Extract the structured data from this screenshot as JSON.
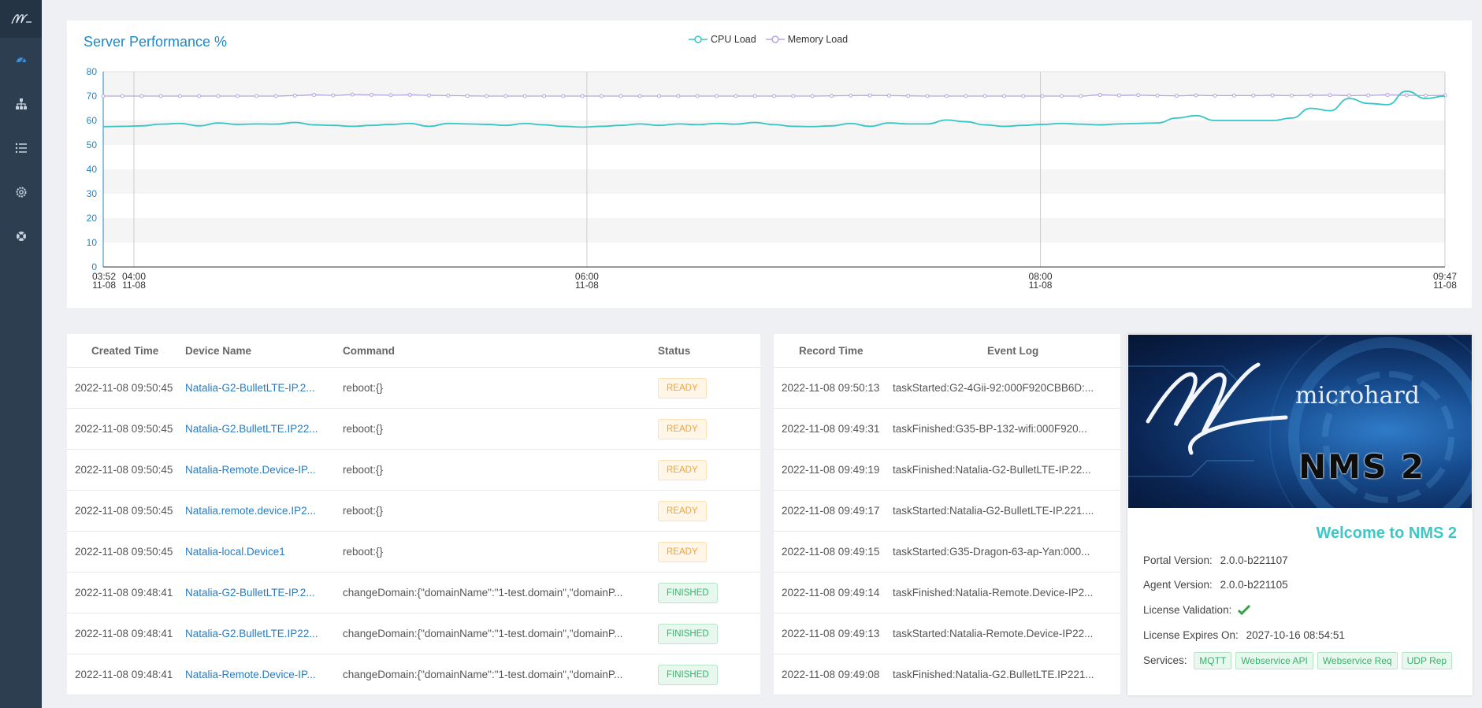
{
  "sidebar": {
    "logo": "microhard logo",
    "items": [
      {
        "icon": "dashboard-icon"
      },
      {
        "icon": "network-icon"
      },
      {
        "icon": "list-icon"
      },
      {
        "icon": "settings-icon"
      },
      {
        "icon": "support-icon"
      }
    ]
  },
  "chart": {
    "title": "Server Performance %",
    "legend": [
      "CPU Load",
      "Memory Load"
    ],
    "colors": {
      "cpu": "#36c6c6",
      "memory": "#b6a6de"
    }
  },
  "chart_data": {
    "type": "line",
    "title": "Server Performance %",
    "ylim": [
      0,
      80
    ],
    "yticks": [
      "0",
      "10",
      "20",
      "30",
      "40",
      "50",
      "60",
      "70",
      "80"
    ],
    "xtick_labels": [
      {
        "t": "03:52",
        "d": "11-08"
      },
      {
        "t": "04:00",
        "d": "11-08"
      },
      {
        "t": "06:00",
        "d": "11-08"
      },
      {
        "t": "08:00",
        "d": "11-08"
      },
      {
        "t": "09:47",
        "d": "11-08"
      }
    ],
    "series": [
      {
        "name": "CPU Load",
        "values": [
          57.5,
          57.6,
          57.8,
          58.5,
          58.8,
          57.8,
          59,
          58.4,
          58.6,
          58.5,
          59.2,
          58.2,
          58,
          57.6,
          58,
          58.4,
          58.8,
          57.6,
          58.8,
          58.6,
          58.4,
          58,
          58.8,
          58.2,
          57.6,
          57.3,
          57.6,
          58,
          58.6,
          58,
          58.6,
          58.3,
          58.8,
          58.5,
          59.2,
          58.3,
          57.6,
          57.5,
          57.8,
          58.8,
          57.6,
          59,
          58.6,
          58.6,
          60.2,
          59.5,
          58.2,
          57.6,
          58,
          58.4,
          58.8,
          58.5,
          58.2,
          58.6,
          58.8,
          59,
          61,
          62,
          60,
          60,
          60,
          60,
          61,
          65,
          64,
          69,
          67,
          66.5,
          72,
          69,
          70
        ]
      },
      {
        "name": "Memory Load",
        "values": [
          70,
          70,
          70,
          70,
          70,
          70,
          70,
          70,
          70,
          70,
          70.2,
          70.5,
          70.3,
          70.6,
          70.5,
          70.4,
          70.5,
          70.3,
          70.2,
          70.1,
          70,
          70,
          70,
          70,
          70,
          70,
          70,
          70,
          70,
          70,
          70,
          70,
          70,
          70,
          70,
          70,
          70,
          70,
          70.1,
          70.2,
          70.3,
          70.2,
          70.1,
          70,
          70,
          70,
          70,
          70,
          70,
          70,
          70,
          70,
          70.5,
          70.3,
          70.4,
          70.2,
          70.1,
          70.3,
          70.2,
          70.2,
          70.2,
          70.3,
          70.2,
          70.3,
          70.4,
          70.2,
          70.3,
          70.5,
          70.3,
          70.2,
          70.3
        ]
      }
    ]
  },
  "commands": {
    "headers": [
      "Created Time",
      "Device Name",
      "Command",
      "Status"
    ],
    "rows": [
      {
        "time": "2022-11-08 09:50:45",
        "device": "Natalia-G2-BulletLTE-IP.2...",
        "command": "reboot:{}",
        "status": "READY"
      },
      {
        "time": "2022-11-08 09:50:45",
        "device": "Natalia-G2.BulletLTE.IP22...",
        "command": "reboot:{}",
        "status": "READY"
      },
      {
        "time": "2022-11-08 09:50:45",
        "device": "Natalia-Remote.Device-IP...",
        "command": "reboot:{}",
        "status": "READY"
      },
      {
        "time": "2022-11-08 09:50:45",
        "device": "Natalia.remote.device.IP2...",
        "command": "reboot:{}",
        "status": "READY"
      },
      {
        "time": "2022-11-08 09:50:45",
        "device": "Natalia-local.Device1",
        "command": "reboot:{}",
        "status": "READY"
      },
      {
        "time": "2022-11-08 09:48:41",
        "device": "Natalia-G2-BulletLTE-IP.2...",
        "command": "changeDomain:{\"domainName\":\"1-test.domain\",\"domainP...",
        "status": "FINISHED"
      },
      {
        "time": "2022-11-08 09:48:41",
        "device": "Natalia-G2.BulletLTE.IP22...",
        "command": "changeDomain:{\"domainName\":\"1-test.domain\",\"domainP...",
        "status": "FINISHED"
      },
      {
        "time": "2022-11-08 09:48:41",
        "device": "Natalia-Remote.Device-IP...",
        "command": "changeDomain:{\"domainName\":\"1-test.domain\",\"domainP...",
        "status": "FINISHED"
      }
    ]
  },
  "events": {
    "headers": [
      "Record Time",
      "Event Log"
    ],
    "rows": [
      {
        "time": "2022-11-08 09:50:13",
        "log": "taskStarted:G2-4Gii-92:000F920CBB6D:..."
      },
      {
        "time": "2022-11-08 09:49:31",
        "log": "taskFinished:G35-BP-132-wifi:000F920..."
      },
      {
        "time": "2022-11-08 09:49:19",
        "log": "taskFinished:Natalia-G2-BulletLTE-IP.22..."
      },
      {
        "time": "2022-11-08 09:49:17",
        "log": "taskStarted:Natalia-G2-BulletLTE-IP.221...."
      },
      {
        "time": "2022-11-08 09:49:15",
        "log": "taskStarted:G35-Dragon-63-ap-Yan:000..."
      },
      {
        "time": "2022-11-08 09:49:14",
        "log": "taskFinished:Natalia-Remote.Device-IP2..."
      },
      {
        "time": "2022-11-08 09:49:13",
        "log": "taskStarted:Natalia-Remote.Device-IP22..."
      },
      {
        "time": "2022-11-08 09:49:08",
        "log": "taskFinished:Natalia-G2.BulletLTE.IP221..."
      }
    ]
  },
  "welcome": {
    "banner_brand": "microhard",
    "banner_product": "NMS 2",
    "title": "Welcome to NMS 2",
    "portal_label": "Portal Version:",
    "portal_value": "2.0.0-b221107",
    "agent_label": "Agent Version:",
    "agent_value": "2.0.0-b221105",
    "license_label": "License Validation:",
    "license_icon": "check-icon",
    "expires_label": "License Expires On:",
    "expires_value": "2027-10-16 08:54:51",
    "services_label": "Services:",
    "services": [
      "MQTT",
      "Webservice API",
      "Webservice Req",
      "UDP Rep"
    ]
  }
}
